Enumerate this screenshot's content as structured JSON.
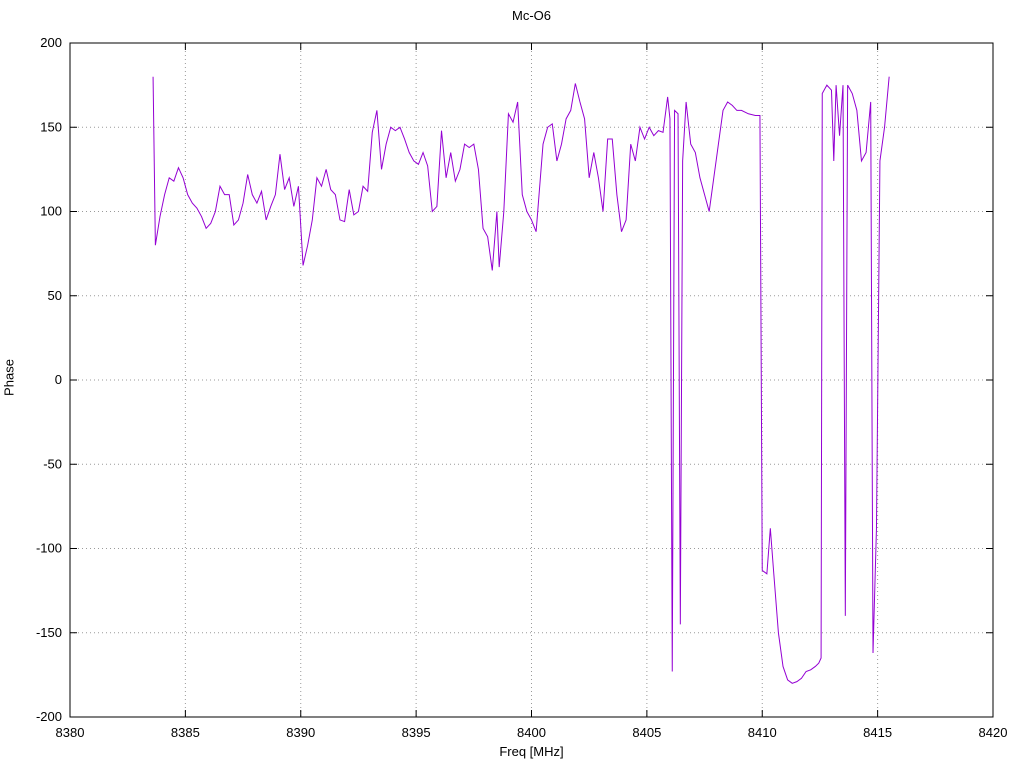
{
  "chart_data": {
    "type": "line",
    "title": "Mc-O6",
    "xlabel": "Freq [MHz]",
    "ylabel": "Phase",
    "xlim": [
      8380,
      8420
    ],
    "ylim": [
      -200,
      200
    ],
    "xticks": [
      8380,
      8385,
      8390,
      8395,
      8400,
      8405,
      8410,
      8415,
      8420
    ],
    "yticks": [
      -200,
      -150,
      -100,
      -50,
      0,
      50,
      100,
      150,
      200
    ],
    "grid": "dotted",
    "legend": "none",
    "line_color": "#9400d3",
    "points": [
      [
        8383.6,
        180
      ],
      [
        8383.7,
        80
      ],
      [
        8383.9,
        97
      ],
      [
        8384.1,
        110
      ],
      [
        8384.3,
        120
      ],
      [
        8384.5,
        118
      ],
      [
        8384.7,
        126
      ],
      [
        8384.9,
        120
      ],
      [
        8385.1,
        110
      ],
      [
        8385.3,
        105
      ],
      [
        8385.5,
        102
      ],
      [
        8385.7,
        97
      ],
      [
        8385.9,
        90
      ],
      [
        8386.1,
        93
      ],
      [
        8386.3,
        100
      ],
      [
        8386.5,
        115
      ],
      [
        8386.7,
        110
      ],
      [
        8386.9,
        110
      ],
      [
        8387.1,
        92
      ],
      [
        8387.3,
        95
      ],
      [
        8387.5,
        105
      ],
      [
        8387.7,
        122
      ],
      [
        8387.9,
        110
      ],
      [
        8388.1,
        105
      ],
      [
        8388.3,
        112
      ],
      [
        8388.5,
        95
      ],
      [
        8388.7,
        103
      ],
      [
        8388.9,
        110
      ],
      [
        8389.1,
        134
      ],
      [
        8389.3,
        113
      ],
      [
        8389.5,
        120
      ],
      [
        8389.7,
        103
      ],
      [
        8389.9,
        115
      ],
      [
        8390.1,
        68
      ],
      [
        8390.3,
        80
      ],
      [
        8390.5,
        95
      ],
      [
        8390.7,
        120
      ],
      [
        8390.9,
        115
      ],
      [
        8391.1,
        125
      ],
      [
        8391.3,
        113
      ],
      [
        8391.5,
        110
      ],
      [
        8391.7,
        95
      ],
      [
        8391.9,
        94
      ],
      [
        8392.1,
        113
      ],
      [
        8392.3,
        98
      ],
      [
        8392.5,
        100
      ],
      [
        8392.7,
        115
      ],
      [
        8392.9,
        112
      ],
      [
        8393.1,
        147
      ],
      [
        8393.3,
        160
      ],
      [
        8393.5,
        125
      ],
      [
        8393.7,
        140
      ],
      [
        8393.9,
        150
      ],
      [
        8394.1,
        148
      ],
      [
        8394.3,
        150
      ],
      [
        8394.5,
        143
      ],
      [
        8394.7,
        135
      ],
      [
        8394.9,
        130
      ],
      [
        8395.1,
        128
      ],
      [
        8395.3,
        135
      ],
      [
        8395.5,
        127
      ],
      [
        8395.7,
        100
      ],
      [
        8395.9,
        103
      ],
      [
        8396.1,
        148
      ],
      [
        8396.3,
        120
      ],
      [
        8396.5,
        135
      ],
      [
        8396.7,
        118
      ],
      [
        8396.9,
        125
      ],
      [
        8397.1,
        140
      ],
      [
        8397.3,
        138
      ],
      [
        8397.5,
        140
      ],
      [
        8397.7,
        125
      ],
      [
        8397.9,
        90
      ],
      [
        8398.1,
        85
      ],
      [
        8398.3,
        65
      ],
      [
        8398.5,
        100
      ],
      [
        8398.6,
        67
      ],
      [
        8398.8,
        100
      ],
      [
        8399.0,
        158
      ],
      [
        8399.2,
        153
      ],
      [
        8399.4,
        165
      ],
      [
        8399.6,
        110
      ],
      [
        8399.8,
        100
      ],
      [
        8400.0,
        95
      ],
      [
        8400.2,
        88
      ],
      [
        8400.5,
        140
      ],
      [
        8400.7,
        150
      ],
      [
        8400.9,
        152
      ],
      [
        8401.1,
        130
      ],
      [
        8401.3,
        140
      ],
      [
        8401.5,
        155
      ],
      [
        8401.7,
        160
      ],
      [
        8401.9,
        176
      ],
      [
        8402.1,
        165
      ],
      [
        8402.3,
        155
      ],
      [
        8402.5,
        120
      ],
      [
        8402.7,
        135
      ],
      [
        8402.9,
        120
      ],
      [
        8403.1,
        100
      ],
      [
        8403.3,
        143
      ],
      [
        8403.5,
        143
      ],
      [
        8403.7,
        110
      ],
      [
        8403.9,
        88
      ],
      [
        8404.1,
        95
      ],
      [
        8404.3,
        140
      ],
      [
        8404.5,
        130
      ],
      [
        8404.7,
        150
      ],
      [
        8404.9,
        143
      ],
      [
        8405.1,
        150
      ],
      [
        8405.3,
        145
      ],
      [
        8405.5,
        148
      ],
      [
        8405.7,
        147
      ],
      [
        8405.9,
        168
      ],
      [
        8406.0,
        155
      ],
      [
        8406.1,
        -173
      ],
      [
        8406.2,
        160
      ],
      [
        8406.35,
        158
      ],
      [
        8406.45,
        -145
      ],
      [
        8406.55,
        130
      ],
      [
        8406.7,
        165
      ],
      [
        8406.9,
        140
      ],
      [
        8407.1,
        135
      ],
      [
        8407.3,
        120
      ],
      [
        8407.5,
        110
      ],
      [
        8407.7,
        100
      ],
      [
        8407.9,
        120
      ],
      [
        8408.1,
        140
      ],
      [
        8408.3,
        160
      ],
      [
        8408.5,
        165
      ],
      [
        8408.7,
        163
      ],
      [
        8408.9,
        160
      ],
      [
        8409.1,
        160
      ],
      [
        8409.4,
        158
      ],
      [
        8409.7,
        157
      ],
      [
        8409.9,
        157
      ],
      [
        8410.0,
        -113
      ],
      [
        8410.2,
        -115
      ],
      [
        8410.35,
        -88
      ],
      [
        8410.5,
        -115
      ],
      [
        8410.7,
        -150
      ],
      [
        8410.9,
        -170
      ],
      [
        8411.1,
        -178
      ],
      [
        8411.3,
        -180
      ],
      [
        8411.5,
        -179
      ],
      [
        8411.7,
        -177
      ],
      [
        8411.9,
        -173
      ],
      [
        8412.1,
        -172
      ],
      [
        8412.3,
        -170
      ],
      [
        8412.45,
        -168
      ],
      [
        8412.55,
        -165
      ],
      [
        8412.6,
        170
      ],
      [
        8412.8,
        175
      ],
      [
        8413.0,
        172
      ],
      [
        8413.1,
        130
      ],
      [
        8413.2,
        175
      ],
      [
        8413.35,
        145
      ],
      [
        8413.5,
        175
      ],
      [
        8413.6,
        -140
      ],
      [
        8413.7,
        175
      ],
      [
        8413.9,
        170
      ],
      [
        8414.1,
        160
      ],
      [
        8414.3,
        130
      ],
      [
        8414.5,
        135
      ],
      [
        8414.7,
        165
      ],
      [
        8414.8,
        -162
      ],
      [
        8414.95,
        -88
      ],
      [
        8415.1,
        130
      ],
      [
        8415.3,
        150
      ],
      [
        8415.5,
        180
      ]
    ]
  }
}
